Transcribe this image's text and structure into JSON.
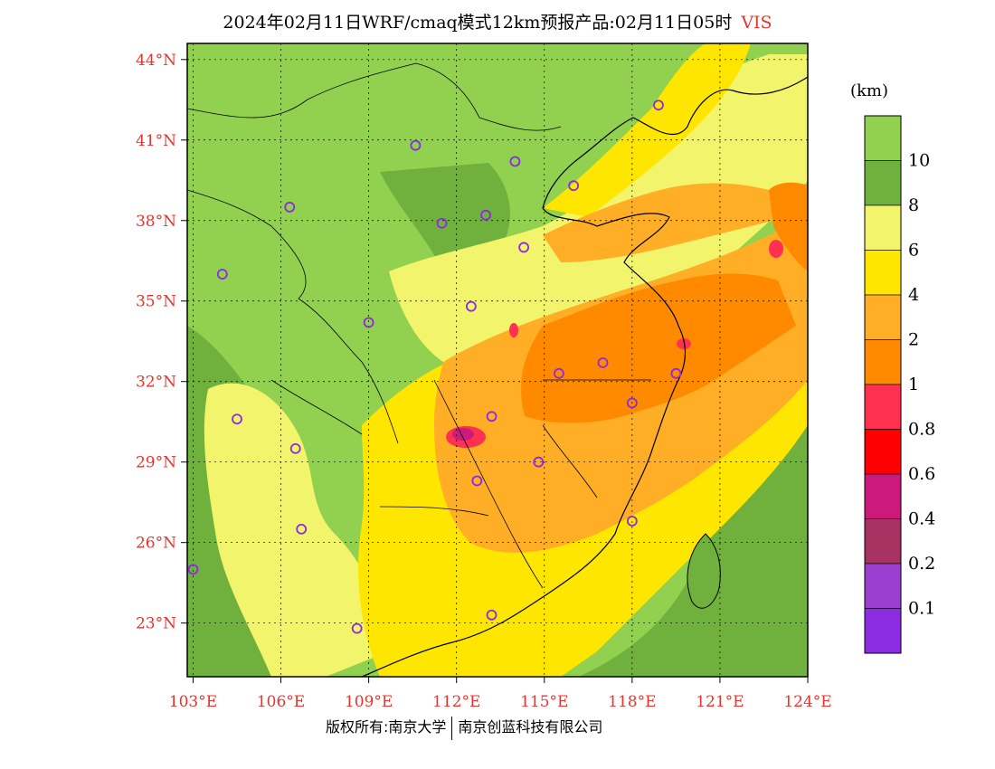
{
  "title": {
    "main": "2024年02月11日WRF/cmaq模式12km预报产品:02月11日05时",
    "variable": "VIS"
  },
  "colors": {
    "title_variable": "#e8332e",
    "axis_labels": "#e8332e",
    "city_marker": "#8a2be2",
    "sea": "#92d050",
    "land_base": "#92d050"
  },
  "map": {
    "lat_labels": [
      "44°N",
      "41°N",
      "38°N",
      "35°N",
      "32°N",
      "29°N",
      "26°N",
      "23°N"
    ],
    "lon_labels": [
      "103°E",
      "106°E",
      "109°E",
      "112°E",
      "115°E",
      "118°E",
      "121°E",
      "124°E"
    ],
    "lat_values": [
      44,
      41,
      38,
      35,
      32,
      29,
      26,
      23
    ],
    "lon_values": [
      103,
      106,
      109,
      112,
      115,
      118,
      121,
      124
    ],
    "extent": {
      "lon_min": 102.8,
      "lon_max": 124.0,
      "lat_min": 21.0,
      "lat_max": 44.6
    },
    "cities": [
      {
        "lon": 118.9,
        "lat": 42.3
      },
      {
        "lon": 110.6,
        "lat": 40.8
      },
      {
        "lon": 114.0,
        "lat": 40.2
      },
      {
        "lon": 116.0,
        "lat": 39.3
      },
      {
        "lon": 106.3,
        "lat": 38.5
      },
      {
        "lon": 111.5,
        "lat": 37.9
      },
      {
        "lon": 113.0,
        "lat": 38.2
      },
      {
        "lon": 114.3,
        "lat": 37.0
      },
      {
        "lon": 104.0,
        "lat": 36.0
      },
      {
        "lon": 112.5,
        "lat": 34.8
      },
      {
        "lon": 109.0,
        "lat": 34.2
      },
      {
        "lon": 117.0,
        "lat": 32.7
      },
      {
        "lon": 115.5,
        "lat": 32.3
      },
      {
        "lon": 119.5,
        "lat": 32.3
      },
      {
        "lon": 118.0,
        "lat": 31.2
      },
      {
        "lon": 104.5,
        "lat": 30.6
      },
      {
        "lon": 113.2,
        "lat": 30.7
      },
      {
        "lon": 106.5,
        "lat": 29.5
      },
      {
        "lon": 114.8,
        "lat": 29.0
      },
      {
        "lon": 112.7,
        "lat": 28.3
      },
      {
        "lon": 106.7,
        "lat": 26.5
      },
      {
        "lon": 118.0,
        "lat": 26.8
      },
      {
        "lon": 103.0,
        "lat": 25.0
      },
      {
        "lon": 113.2,
        "lat": 23.3
      },
      {
        "lon": 108.6,
        "lat": 22.8
      }
    ]
  },
  "legend": {
    "unit": "(km)",
    "labels": [
      "10",
      "8",
      "6",
      "4",
      "2",
      "1",
      "0.8",
      "0.6",
      "0.4",
      "0.2",
      "0.1"
    ],
    "colors": [
      "#92d050",
      "#70b03c",
      "#f2f56b",
      "#ffe600",
      "#ffae25",
      "#ff8a00",
      "#ff3050",
      "#ff0000",
      "#cc1a7c",
      "#a83262",
      "#9a3fd0",
      "#8b2be2"
    ]
  },
  "copyright": {
    "left": "版权所有:南京大学",
    "right": "南京创蓝科技有限公司"
  }
}
